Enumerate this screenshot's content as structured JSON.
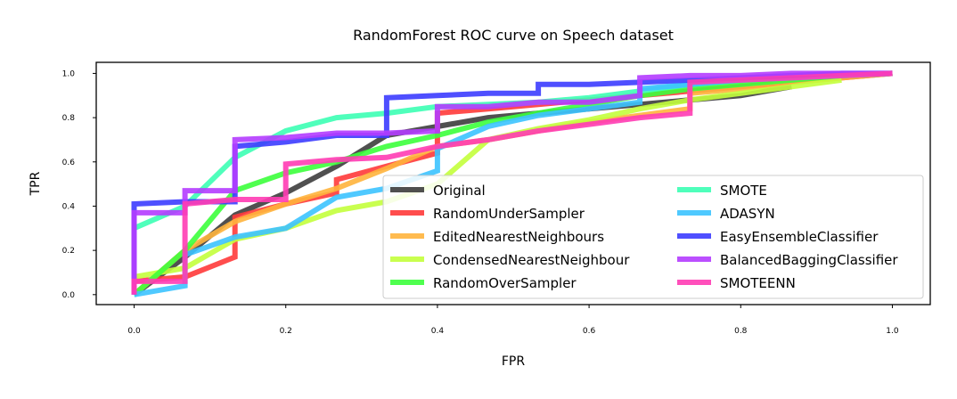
{
  "chart_data": {
    "type": "line",
    "title": "RandomForest ROC curve on Speech dataset",
    "xlabel": "FPR",
    "ylabel": "TPR",
    "xlim": [
      -0.05,
      1.05
    ],
    "ylim": [
      -0.045,
      1.05
    ],
    "xticks": [
      0.0,
      0.2,
      0.4,
      0.6,
      0.8,
      1.0
    ],
    "yticks": [
      0.0,
      0.2,
      0.4,
      0.6,
      0.8,
      1.0
    ],
    "xtick_labels": [
      "0.0",
      "0.2",
      "0.4",
      "0.6",
      "0.8",
      "1.0"
    ],
    "ytick_labels": [
      "0.0",
      "0.2",
      "0.4",
      "0.6",
      "0.8",
      "1.0"
    ],
    "grid": false,
    "legend_position": "lower-right",
    "series": [
      {
        "name": "Original",
        "color": "#3d3d3d",
        "x": [
          0.0,
          0.067,
          0.133,
          0.2,
          0.267,
          0.333,
          0.4,
          0.467,
          0.533,
          0.6,
          0.667,
          0.733,
          0.8,
          0.867
        ],
        "y": [
          0.0,
          0.17,
          0.36,
          0.46,
          0.58,
          0.72,
          0.76,
          0.8,
          0.82,
          0.84,
          0.86,
          0.88,
          0.9,
          0.94
        ]
      },
      {
        "name": "RandomUnderSampler",
        "color": "#ff3a3a",
        "x": [
          0.0,
          0.067,
          0.133,
          0.133,
          0.2,
          0.267,
          0.267,
          0.333,
          0.4,
          0.4,
          0.467,
          0.533,
          0.6,
          0.667,
          0.733,
          0.8,
          0.867,
          0.933,
          1.0
        ],
        "y": [
          0.06,
          0.08,
          0.17,
          0.35,
          0.41,
          0.46,
          0.52,
          0.58,
          0.64,
          0.82,
          0.84,
          0.86,
          0.88,
          0.9,
          0.92,
          0.94,
          0.96,
          0.98,
          1.0
        ]
      },
      {
        "name": "EditedNearestNeighbours",
        "color": "#ffb43c",
        "x": [
          0.0,
          0.067,
          0.133,
          0.2,
          0.267,
          0.333,
          0.4,
          0.467,
          0.533,
          0.6,
          0.667,
          0.733,
          0.733,
          0.8,
          0.867,
          0.933,
          1.0
        ],
        "y": [
          0.0,
          0.2,
          0.33,
          0.41,
          0.48,
          0.57,
          0.67,
          0.7,
          0.74,
          0.78,
          0.81,
          0.84,
          0.91,
          0.93,
          0.96,
          0.98,
          1.0
        ]
      },
      {
        "name": "CondensedNearestNeighbour",
        "color": "#c3ff3c",
        "x": [
          0.0,
          0.067,
          0.133,
          0.2,
          0.267,
          0.333,
          0.4,
          0.467,
          0.533,
          0.6,
          0.667,
          0.733,
          0.8,
          0.867,
          0.933
        ],
        "y": [
          0.08,
          0.12,
          0.25,
          0.3,
          0.38,
          0.42,
          0.5,
          0.7,
          0.75,
          0.79,
          0.84,
          0.88,
          0.91,
          0.94,
          0.97
        ]
      },
      {
        "name": "RandomOverSampler",
        "color": "#3cff3c",
        "x": [
          0.0,
          0.067,
          0.133,
          0.2,
          0.267,
          0.333,
          0.4,
          0.467,
          0.533,
          0.6,
          0.667,
          0.733,
          0.8,
          0.867,
          0.933,
          1.0
        ],
        "y": [
          0.0,
          0.2,
          0.47,
          0.55,
          0.6,
          0.67,
          0.72,
          0.78,
          0.82,
          0.86,
          0.9,
          0.93,
          0.95,
          0.97,
          0.99,
          1.0
        ]
      },
      {
        "name": "SMOTE",
        "color": "#3cffb4",
        "x": [
          0.0,
          0.067,
          0.133,
          0.2,
          0.267,
          0.333,
          0.4,
          0.467,
          0.533,
          0.6,
          0.667,
          0.733,
          0.8,
          0.867,
          0.933,
          1.0
        ],
        "y": [
          0.3,
          0.4,
          0.62,
          0.74,
          0.8,
          0.82,
          0.85,
          0.86,
          0.87,
          0.89,
          0.92,
          0.95,
          0.97,
          0.98,
          0.99,
          1.0
        ]
      },
      {
        "name": "ADASYN",
        "color": "#3cc3ff",
        "x": [
          0.0,
          0.067,
          0.067,
          0.133,
          0.2,
          0.267,
          0.333,
          0.4,
          0.4,
          0.467,
          0.533,
          0.6,
          0.667,
          0.667,
          0.733,
          0.8,
          0.867,
          0.933,
          1.0
        ],
        "y": [
          0.0,
          0.04,
          0.18,
          0.26,
          0.3,
          0.44,
          0.48,
          0.56,
          0.66,
          0.76,
          0.81,
          0.84,
          0.87,
          0.93,
          0.95,
          0.97,
          0.98,
          0.99,
          1.0
        ]
      },
      {
        "name": "EasyEnsembleClassifier",
        "color": "#3c3cff",
        "x": [
          0.0,
          0.0,
          0.067,
          0.133,
          0.133,
          0.2,
          0.267,
          0.333,
          0.333,
          0.4,
          0.467,
          0.533,
          0.533,
          0.6,
          0.667,
          0.733,
          0.8,
          0.867,
          0.933,
          1.0
        ],
        "y": [
          0.0,
          0.41,
          0.42,
          0.42,
          0.67,
          0.69,
          0.72,
          0.72,
          0.89,
          0.9,
          0.91,
          0.91,
          0.95,
          0.95,
          0.96,
          0.97,
          0.98,
          0.99,
          1.0,
          1.0
        ]
      },
      {
        "name": "BalancedBaggingClassifier",
        "color": "#b43cff",
        "x": [
          0.0,
          0.0,
          0.067,
          0.067,
          0.133,
          0.133,
          0.2,
          0.267,
          0.333,
          0.4,
          0.4,
          0.467,
          0.533,
          0.6,
          0.667,
          0.667,
          0.733,
          0.8,
          0.867,
          0.933,
          1.0
        ],
        "y": [
          0.0,
          0.37,
          0.37,
          0.47,
          0.47,
          0.7,
          0.71,
          0.73,
          0.73,
          0.74,
          0.85,
          0.85,
          0.87,
          0.87,
          0.9,
          0.98,
          0.99,
          0.99,
          1.0,
          1.0,
          1.0
        ]
      },
      {
        "name": "SMOTEENN",
        "color": "#ff3cb4",
        "x": [
          0.0,
          0.0,
          0.067,
          0.067,
          0.133,
          0.2,
          0.2,
          0.267,
          0.333,
          0.4,
          0.467,
          0.533,
          0.6,
          0.667,
          0.733,
          0.733,
          0.8,
          0.867,
          0.933,
          1.0
        ],
        "y": [
          0.0,
          0.06,
          0.06,
          0.41,
          0.43,
          0.43,
          0.59,
          0.61,
          0.62,
          0.67,
          0.7,
          0.74,
          0.77,
          0.8,
          0.82,
          0.96,
          0.97,
          0.98,
          0.99,
          1.0
        ]
      }
    ]
  }
}
